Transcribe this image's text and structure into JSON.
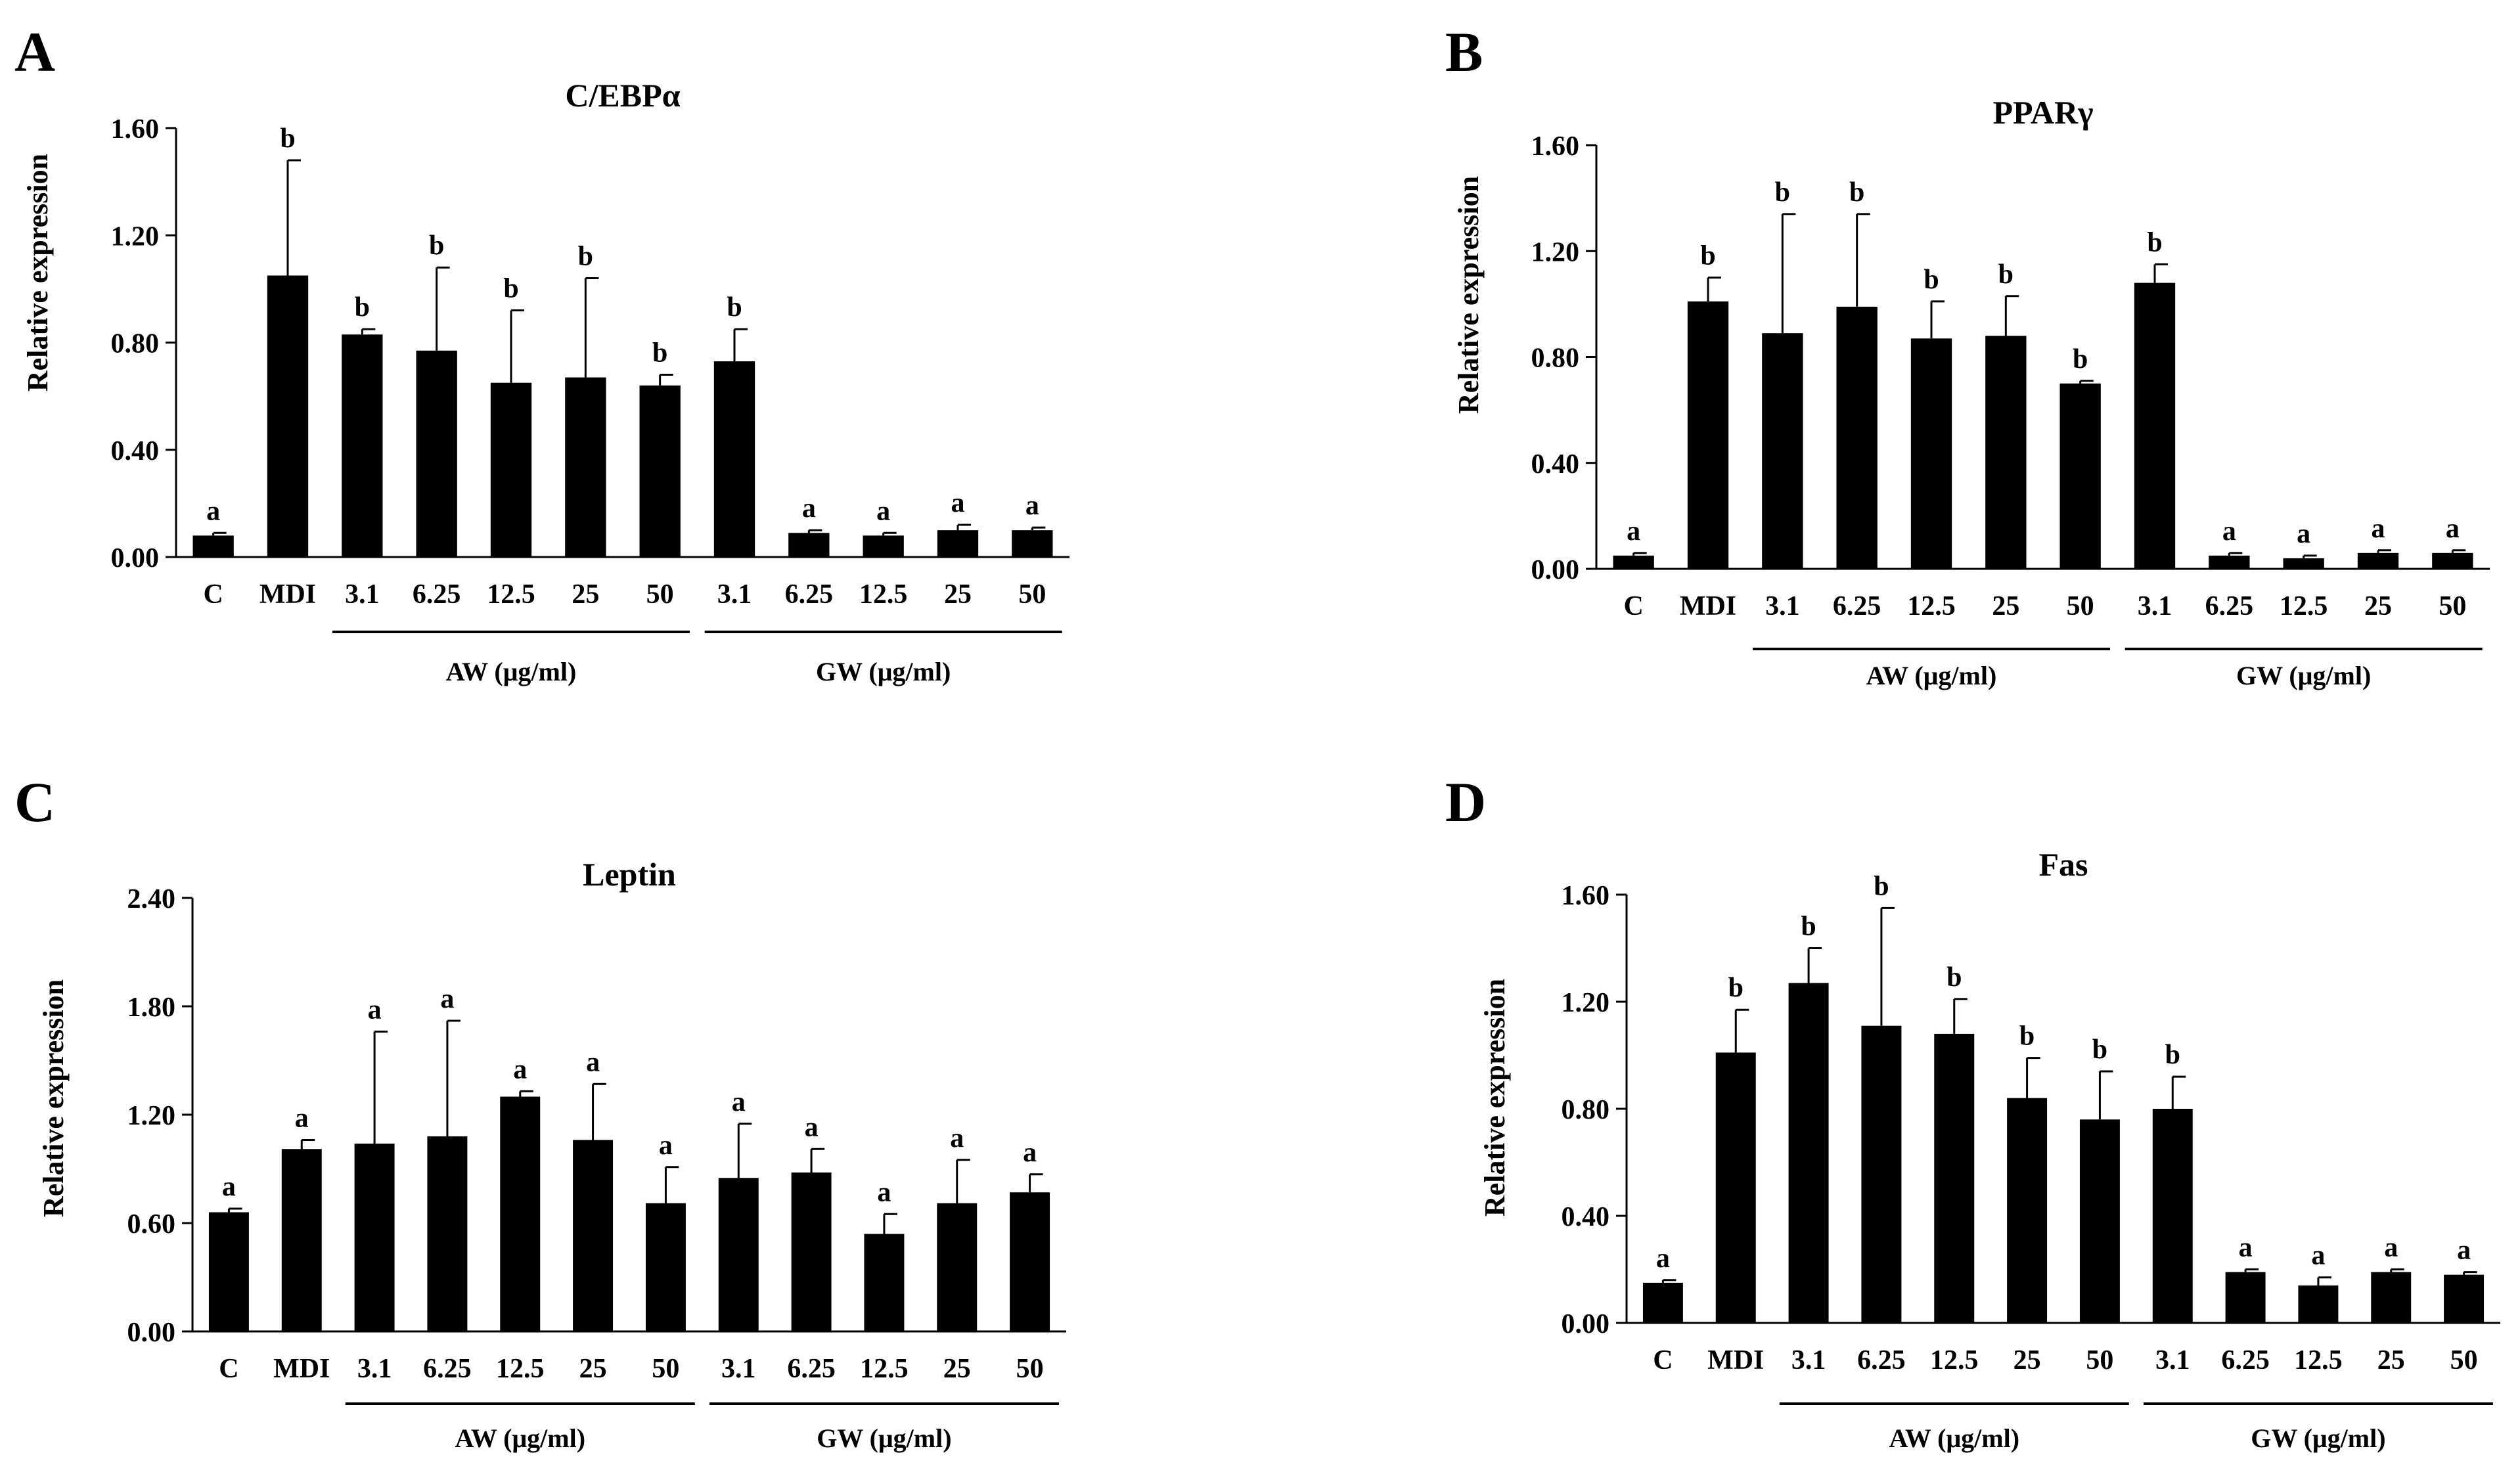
{
  "figure": {
    "ylabel": "Relative expression",
    "bar_color": "#000000",
    "background": "#ffffff"
  },
  "chart_data": [
    {
      "panel_label": "A",
      "type": "bar",
      "title": "C/EBPα",
      "xlabel": "",
      "ylabel": "Relative expression",
      "ylim": [
        0,
        1.6
      ],
      "yticks": [
        "0.00",
        "0.40",
        "0.80",
        "1.20",
        "1.60"
      ],
      "grid": false,
      "categories": [
        "C",
        "MDI",
        "3.1",
        "6.25",
        "12.5",
        "25",
        "50",
        "3.1",
        "6.25",
        "12.5",
        "25",
        "50"
      ],
      "values": [
        0.08,
        1.05,
        0.83,
        0.77,
        0.65,
        0.67,
        0.64,
        0.73,
        0.09,
        0.08,
        0.1,
        0.1
      ],
      "errors": [
        0.01,
        0.43,
        0.02,
        0.31,
        0.27,
        0.37,
        0.04,
        0.12,
        0.01,
        0.01,
        0.02,
        0.01
      ],
      "significance": [
        "a",
        "b",
        "b",
        "b",
        "b",
        "b",
        "b",
        "b",
        "a",
        "a",
        "a",
        "a"
      ],
      "groups": [
        {
          "label": "AW (μg/ml)",
          "start": 2,
          "end": 6
        },
        {
          "label": "GW (μg/ml)",
          "start": 7,
          "end": 11
        }
      ]
    },
    {
      "panel_label": "B",
      "type": "bar",
      "title": "PPARγ",
      "xlabel": "",
      "ylabel": "Relative expression",
      "ylim": [
        0,
        1.6
      ],
      "yticks": [
        "0.00",
        "0.40",
        "0.80",
        "1.20",
        "1.60"
      ],
      "grid": false,
      "categories": [
        "C",
        "MDI",
        "3.1",
        "6.25",
        "12.5",
        "25",
        "50",
        "3.1",
        "6.25",
        "12.5",
        "25",
        "50"
      ],
      "values": [
        0.05,
        1.01,
        0.89,
        0.99,
        0.87,
        0.88,
        0.7,
        1.08,
        0.05,
        0.04,
        0.06,
        0.06
      ],
      "errors": [
        0.01,
        0.09,
        0.45,
        0.35,
        0.14,
        0.15,
        0.01,
        0.07,
        0.01,
        0.01,
        0.01,
        0.01
      ],
      "significance": [
        "a",
        "b",
        "b",
        "b",
        "b",
        "b",
        "b",
        "b",
        "a",
        "a",
        "a",
        "a"
      ],
      "groups": [
        {
          "label": "AW (μg/ml)",
          "start": 2,
          "end": 6
        },
        {
          "label": "GW (μg/ml)",
          "start": 7,
          "end": 11
        }
      ]
    },
    {
      "panel_label": "C",
      "type": "bar",
      "title": "Leptin",
      "xlabel": "",
      "ylabel": "Relative expression",
      "ylim": [
        0,
        2.4
      ],
      "yticks": [
        "0.00",
        "0.60",
        "1.20",
        "1.80",
        "2.40"
      ],
      "grid": false,
      "categories": [
        "C",
        "MDI",
        "3.1",
        "6.25",
        "12.5",
        "25",
        "50",
        "3.1",
        "6.25",
        "12.5",
        "25",
        "50"
      ],
      "values": [
        0.66,
        1.01,
        1.04,
        1.08,
        1.3,
        1.06,
        0.71,
        0.85,
        0.88,
        0.54,
        0.71,
        0.77
      ],
      "errors": [
        0.02,
        0.05,
        0.62,
        0.64,
        0.03,
        0.31,
        0.2,
        0.3,
        0.13,
        0.11,
        0.24,
        0.1
      ],
      "significance": [
        "a",
        "a",
        "a",
        "a",
        "a",
        "a",
        "a",
        "a",
        "a",
        "a",
        "a",
        "a"
      ],
      "groups": [
        {
          "label": "AW (μg/ml)",
          "start": 2,
          "end": 6
        },
        {
          "label": "GW (μg/ml)",
          "start": 7,
          "end": 11
        }
      ]
    },
    {
      "panel_label": "D",
      "type": "bar",
      "title": "Fas",
      "xlabel": "",
      "ylabel": "Relative expression",
      "ylim": [
        0,
        1.6
      ],
      "yticks": [
        "0.00",
        "0.40",
        "0.80",
        "1.20",
        "1.60"
      ],
      "grid": false,
      "categories": [
        "C",
        "MDI",
        "3.1",
        "6.25",
        "12.5",
        "25",
        "50",
        "3.1",
        "6.25",
        "12.5",
        "25",
        "50"
      ],
      "values": [
        0.15,
        1.01,
        1.27,
        1.11,
        1.08,
        0.84,
        0.76,
        0.8,
        0.19,
        0.14,
        0.19,
        0.18
      ],
      "errors": [
        0.01,
        0.16,
        0.13,
        0.44,
        0.13,
        0.15,
        0.18,
        0.12,
        0.01,
        0.03,
        0.01,
        0.01
      ],
      "significance": [
        "a",
        "b",
        "b",
        "b",
        "b",
        "b",
        "b",
        "b",
        "a",
        "a",
        "a",
        "a"
      ],
      "groups": [
        {
          "label": "AW (μg/ml)",
          "start": 2,
          "end": 6
        },
        {
          "label": "GW (μg/ml)",
          "start": 7,
          "end": 11
        }
      ]
    }
  ]
}
